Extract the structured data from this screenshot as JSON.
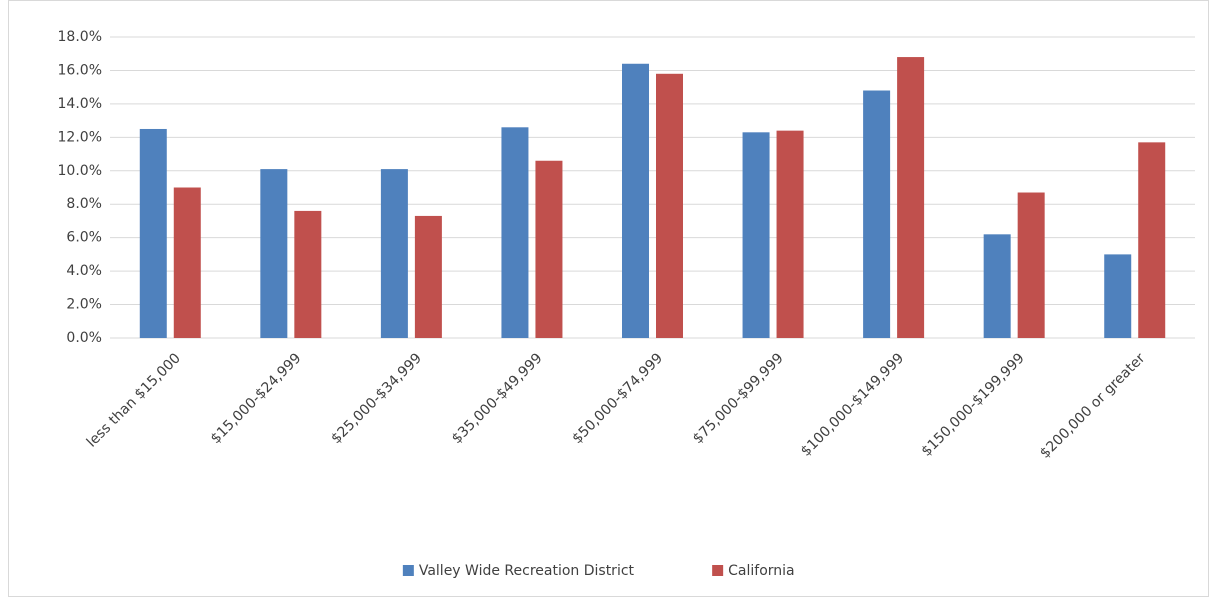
{
  "chart_data": {
    "type": "bar",
    "categories": [
      "less than $15,000",
      "$15,000-$24,999",
      "$25,000-$34,999",
      "$35,000-$49,999",
      "$50,000-$74,999",
      "$75,000-$99,999",
      "$100,000-$149,999",
      "$150,000-$199,999",
      "$200,000 or greater"
    ],
    "series": [
      {
        "name": "Valley Wide Recreation District",
        "color": "#4f81bd",
        "values": [
          12.5,
          10.1,
          10.1,
          12.6,
          16.4,
          12.3,
          14.8,
          6.2,
          5.0
        ]
      },
      {
        "name": "California",
        "color": "#c0504d",
        "values": [
          9.0,
          7.6,
          7.3,
          10.6,
          15.8,
          12.4,
          16.8,
          8.7,
          11.7
        ]
      }
    ],
    "ylim": [
      0,
      18
    ],
    "yticks": [
      {
        "value": 0,
        "label": "0.0%"
      },
      {
        "value": 2,
        "label": "2.0%"
      },
      {
        "value": 4,
        "label": "4.0%"
      },
      {
        "value": 6,
        "label": "6.0%"
      },
      {
        "value": 8,
        "label": "8.0%"
      },
      {
        "value": 10,
        "label": "10.0%"
      },
      {
        "value": 12,
        "label": "12.0%"
      },
      {
        "value": 14,
        "label": "14.0%"
      },
      {
        "value": 16,
        "label": "16.0%"
      },
      {
        "value": 18,
        "label": "18.0%"
      }
    ],
    "grid": true,
    "legend": "bottom"
  }
}
